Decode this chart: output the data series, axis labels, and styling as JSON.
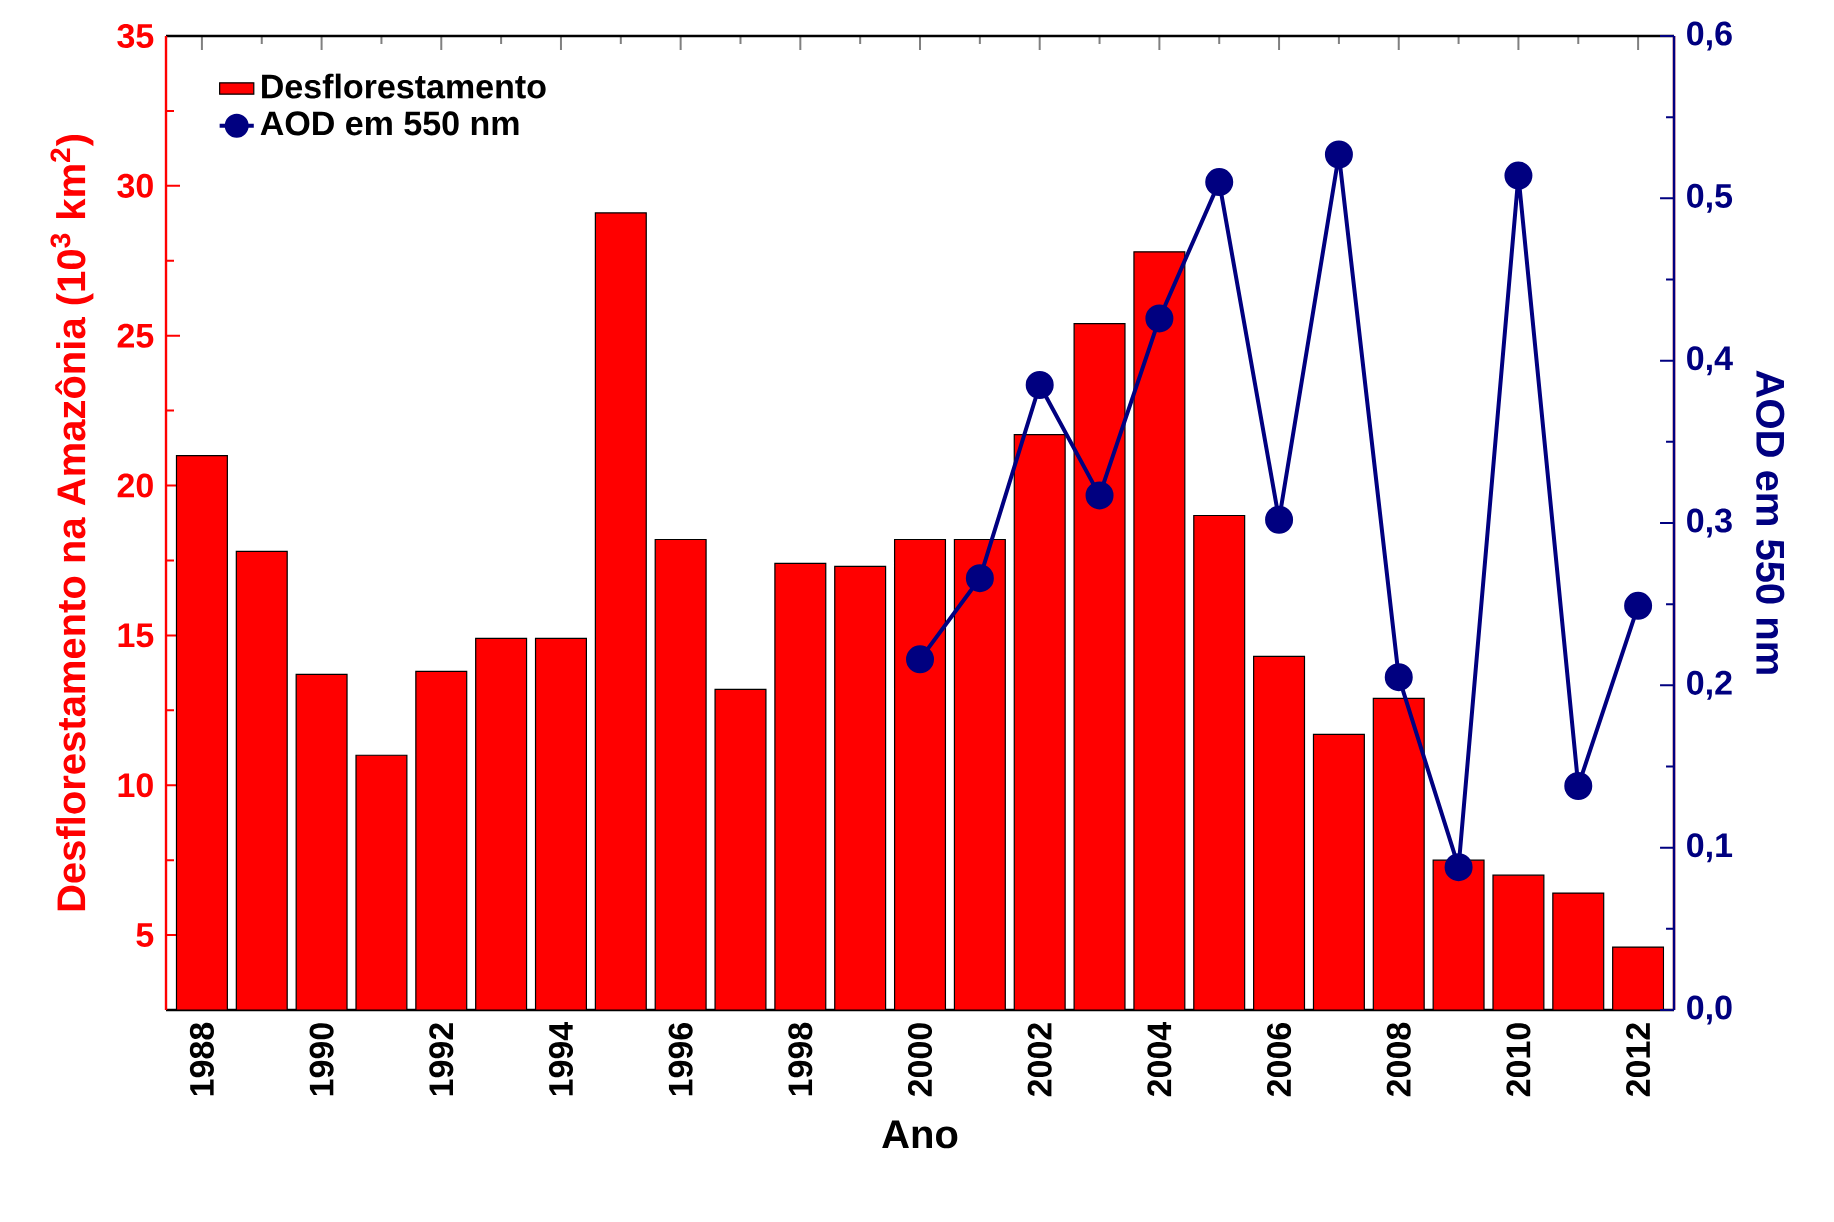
{
  "chart_data": {
    "type": "bar",
    "xlabel": "Ano",
    "ylabel": "Desflorestamento na Amazônia (10$^{3}$ km$^{2}$)",
    "y2label": "AOD em 550 nm",
    "x": [
      1988,
      1989,
      1990,
      1991,
      1992,
      1993,
      1994,
      1995,
      1996,
      1997,
      1998,
      1999,
      2000,
      2001,
      2002,
      2003,
      2004,
      2005,
      2006,
      2007,
      2008,
      2009,
      2010,
      2011,
      2012
    ],
    "xlim": [
      1987.4,
      2012.6
    ],
    "xticks": [
      1988,
      1990,
      1992,
      1994,
      1996,
      1998,
      2000,
      2002,
      2004,
      2006,
      2008,
      2010,
      2012
    ],
    "ylim": [
      2.5,
      35
    ],
    "yticks": [
      5,
      10,
      15,
      20,
      25,
      30,
      35
    ],
    "y2lim": [
      0,
      0.6
    ],
    "y2ticks": [
      {
        "value": 0,
        "label": "0,0"
      },
      {
        "value": 0.1,
        "label": "0,1"
      },
      {
        "value": 0.2,
        "label": "0,2"
      },
      {
        "value": 0.3,
        "label": "0,3"
      },
      {
        "value": 0.4,
        "label": "0,4"
      },
      {
        "value": 0.5,
        "label": "0,5"
      },
      {
        "value": 0.6,
        "label": "0,6"
      }
    ],
    "legend": "top left",
    "series": [
      {
        "name": "Desflorestamento",
        "color": "#ff0000",
        "values": [
          21.0,
          17.8,
          13.7,
          11.0,
          13.8,
          14.9,
          14.9,
          29.1,
          18.2,
          13.2,
          17.4,
          17.3,
          18.2,
          18.2,
          21.7,
          25.4,
          27.8,
          19.0,
          14.3,
          11.7,
          12.9,
          7.5,
          7.0,
          6.4,
          4.6
        ]
      },
      {
        "name": "AOD em 550 nm",
        "type": "line",
        "axis": "y2",
        "marker": "circle",
        "color": "#000080",
        "x": [
          2000,
          2001,
          2002,
          2003,
          2004,
          2005,
          2006,
          2007,
          2008,
          2009,
          2010,
          2011,
          2012
        ],
        "values": [
          0.216,
          0.266,
          0.385,
          0.317,
          0.426,
          0.51,
          0.302,
          0.527,
          0.205,
          0.088,
          0.514,
          0.138,
          0.249
        ]
      }
    ]
  }
}
